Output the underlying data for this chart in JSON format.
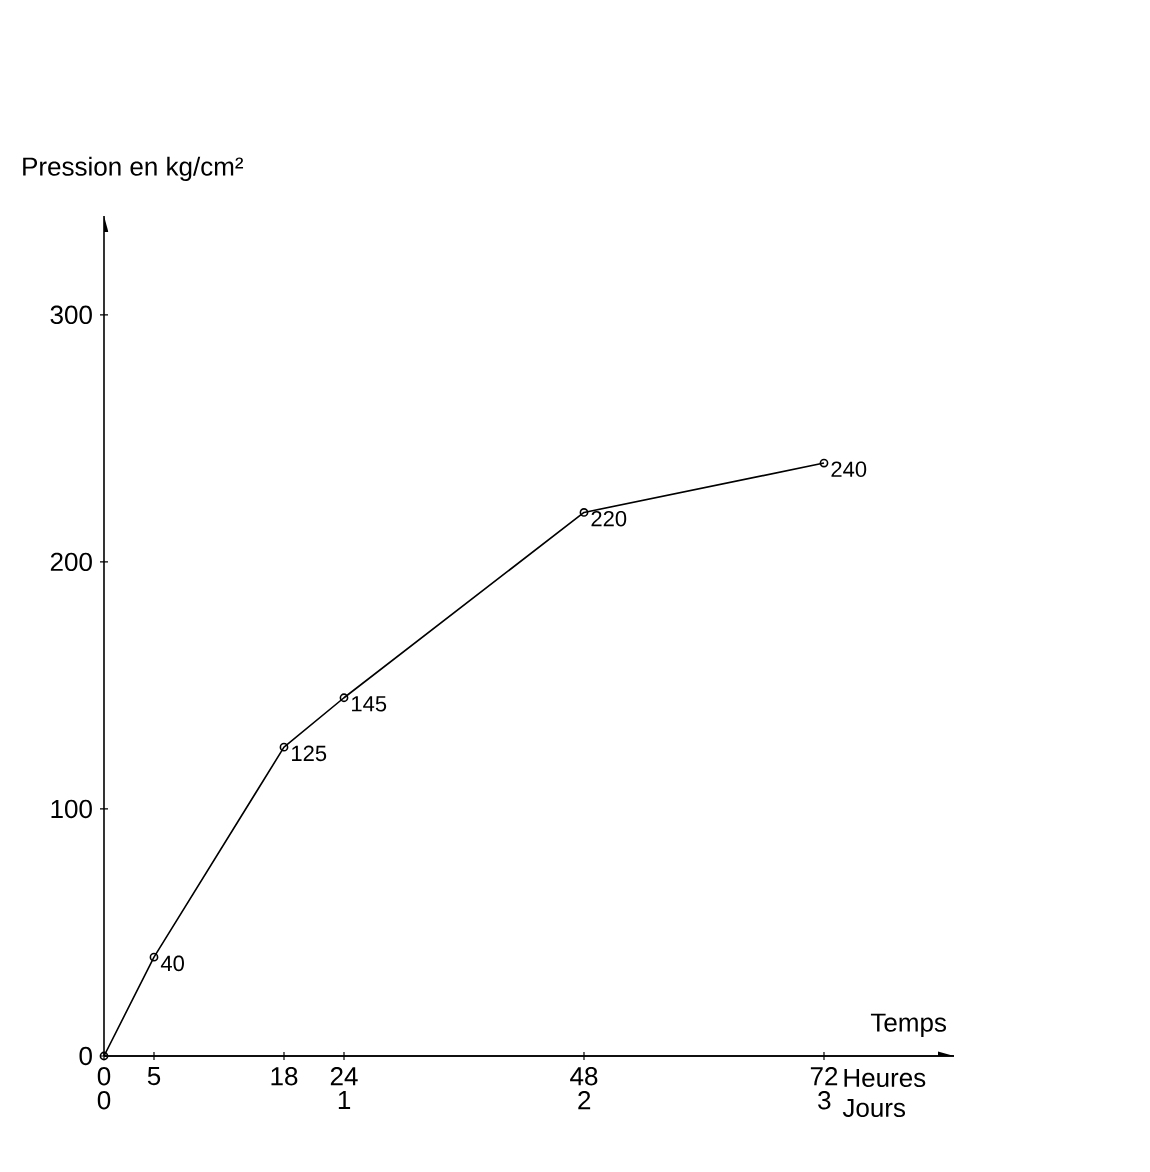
{
  "chart_data": {
    "type": "line",
    "ylabel": "Pression en kg/cm²",
    "xlabel": "Temps",
    "x": [
      0,
      5,
      18,
      24,
      48,
      72
    ],
    "series": [
      {
        "color": "#000000",
        "values": [
          0,
          40,
          125,
          145,
          220,
          240
        ],
        "value_labels": [
          null,
          "40",
          "125",
          "145",
          "220",
          "240"
        ]
      }
    ],
    "xlim": [
      0,
      85
    ],
    "xticks": [
      0,
      5,
      18,
      24,
      48,
      72
    ],
    "x2lim": [
      0,
      3.54
    ],
    "x2ticks": [
      0,
      1,
      2,
      3
    ],
    "ylim": [
      0,
      340
    ],
    "yticks": [
      0,
      100,
      200,
      300
    ],
    "annotations": [
      "Heures",
      "Jours"
    ],
    "marker": "circle",
    "line_style": "solid",
    "grid": false,
    "legend": false
  }
}
